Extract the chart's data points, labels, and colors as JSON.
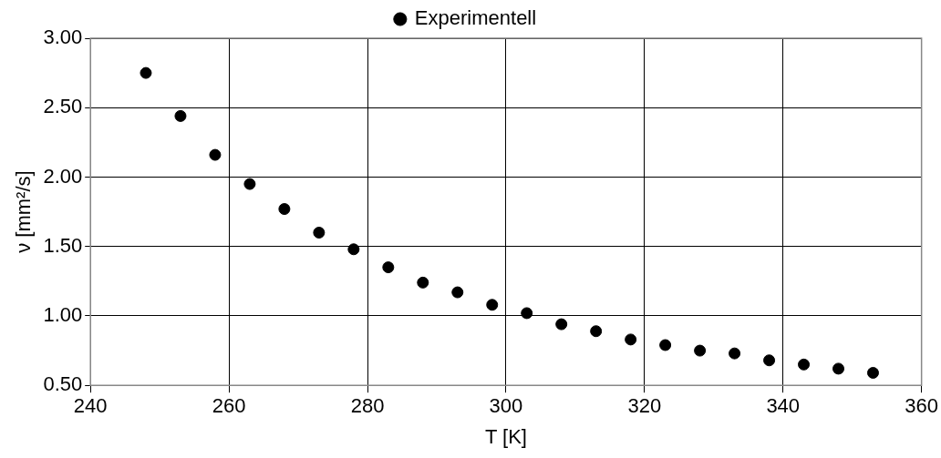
{
  "chart_data": {
    "type": "scatter",
    "xlabel": "T [K]",
    "ylabel": "ν [mm²/s]",
    "x": [
      248,
      253,
      258,
      263,
      268,
      273,
      278,
      283,
      288,
      293,
      298,
      303,
      308,
      313,
      318,
      323,
      328,
      333,
      338,
      343,
      348,
      353
    ],
    "series": [
      {
        "name": "Experimentell",
        "color": "#000000",
        "values": [
          2.75,
          2.44,
          2.16,
          1.95,
          1.77,
          1.6,
          1.48,
          1.35,
          1.24,
          1.17,
          1.08,
          1.02,
          0.94,
          0.89,
          0.83,
          0.79,
          0.75,
          0.73,
          0.68,
          0.65,
          0.62,
          0.59
        ]
      }
    ],
    "xlim": [
      240,
      360
    ],
    "xticks": [
      240,
      260,
      280,
      300,
      320,
      340,
      360
    ],
    "ylim": [
      0.5,
      3.0
    ],
    "yticks": [
      {
        "value": 0.5,
        "label": "0.50"
      },
      {
        "value": 1.0,
        "label": "1.00"
      },
      {
        "value": 1.5,
        "label": "1.50"
      },
      {
        "value": 2.0,
        "label": "2.00"
      },
      {
        "value": 2.5,
        "label": "2.50"
      },
      {
        "value": 3.0,
        "label": "3.00"
      }
    ],
    "grid": true,
    "legend": "top",
    "marker": "circle"
  }
}
